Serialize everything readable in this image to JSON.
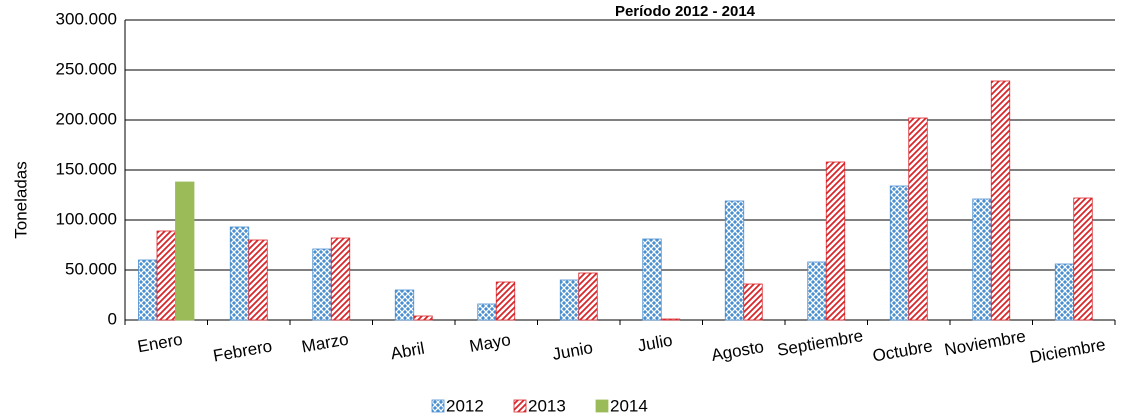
{
  "chart_data": {
    "type": "bar",
    "title": "Período  2012 - 2014",
    "y_label": "Toneladas",
    "categories": [
      "Enero",
      "Febrero",
      "Marzo",
      "Abril",
      "Mayo",
      "Junio",
      "Julio",
      "Agosto",
      "Septiembre",
      "Octubre",
      "Noviembre",
      "Diciembre"
    ],
    "series": [
      {
        "name": "2012",
        "color": "#4a8fd0",
        "values": [
          60000,
          93000,
          71000,
          30000,
          16000,
          40000,
          81000,
          119000,
          58000,
          134000,
          121000,
          56000
        ]
      },
      {
        "name": "2013",
        "color": "#d9262b",
        "values": [
          89000,
          80000,
          82000,
          4000,
          38000,
          47000,
          1000,
          36000,
          158000,
          202000,
          239000,
          122000
        ]
      },
      {
        "name": "2014",
        "color": "#9bbb59",
        "values": [
          138000,
          null,
          null,
          null,
          null,
          null,
          null,
          null,
          null,
          null,
          null,
          null
        ]
      }
    ],
    "ylim": [
      0,
      300000
    ],
    "yticks": [
      0,
      {
        "value": 50000,
        "label": "50.000"
      },
      {
        "value": 100000,
        "label": "100.000"
      },
      {
        "value": 150000,
        "label": "150.000"
      },
      {
        "value": 200000,
        "label": "200.000"
      },
      {
        "value": 250000,
        "label": "250.000"
      },
      {
        "value": 300000,
        "label": "300.000"
      }
    ],
    "grid": true
  }
}
